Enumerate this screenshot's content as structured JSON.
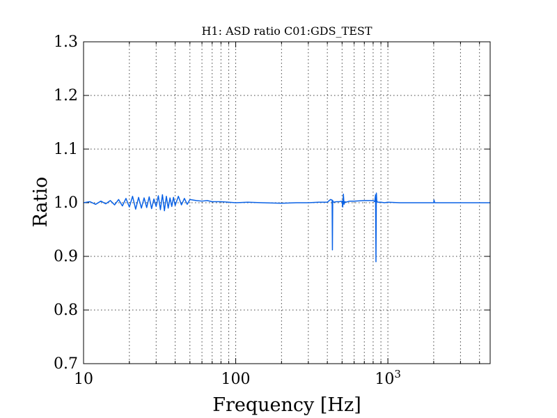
{
  "chart_data": {
    "type": "line",
    "title": "H1: ASD ratio C01:GDS_TEST",
    "xlabel": "Frequency [Hz]",
    "ylabel": "Ratio",
    "xscale": "log",
    "xlim": [
      10,
      4700
    ],
    "ylim": [
      0.7,
      1.3
    ],
    "grid": true,
    "x_tick_labels": [
      {
        "value": 10,
        "label": "10"
      },
      {
        "value": 100,
        "label": "100"
      },
      {
        "value": 1000,
        "label": "10",
        "sup": "3"
      }
    ],
    "y_tick_labels": [
      "0.7",
      "0.8",
      "0.9",
      "1.0",
      "1.1",
      "1.2",
      "1.3"
    ],
    "line_color": "#0a62e6",
    "series": [
      {
        "x": [
          10,
          11,
          12,
          13,
          14,
          15,
          16,
          17,
          18,
          19,
          20,
          21,
          22,
          23,
          24,
          25,
          26,
          27,
          28,
          29,
          30,
          31,
          32,
          33,
          34,
          35,
          36,
          37,
          38,
          39,
          40,
          42,
          44,
          46,
          48,
          50,
          55,
          60,
          65,
          70,
          80,
          90,
          100,
          120,
          150,
          200,
          250,
          300,
          350,
          400,
          420,
          430,
          432,
          434,
          436,
          440,
          460,
          480,
          500,
          505,
          510,
          515,
          520,
          530,
          560,
          600,
          700,
          800,
          820,
          830,
          835,
          840,
          845,
          850,
          860,
          900,
          950,
          1000,
          1200,
          1500,
          2000,
          2010,
          2030,
          2500,
          3000,
          4000,
          4700
        ],
        "y": [
          1.0,
          1.002,
          0.997,
          1.003,
          0.998,
          1.004,
          0.996,
          1.006,
          0.994,
          1.008,
          0.992,
          1.012,
          0.988,
          1.01,
          0.99,
          1.009,
          0.991,
          1.011,
          0.989,
          1.007,
          0.993,
          1.013,
          0.987,
          1.015,
          0.985,
          1.012,
          0.99,
          1.009,
          0.993,
          1.01,
          0.995,
          1.012,
          0.996,
          1.008,
          0.997,
          1.006,
          1.004,
          1.003,
          1.004,
          1.002,
          1.002,
          1.001,
          1.0,
          1.001,
          1.0,
          0.999,
          1.0,
          1.0,
          1.001,
          1.001,
          1.006,
          1.005,
          0.912,
          1.004,
          1.002,
          1.001,
          1.002,
          1.002,
          1.003,
          0.992,
          1.016,
          0.997,
          1.002,
          1.001,
          1.003,
          1.003,
          1.004,
          1.004,
          1.002,
          1.015,
          0.89,
          1.018,
          1.004,
          1.002,
          1.001,
          1.001,
          1.0,
          1.001,
          1.0,
          1.0,
          1.0,
          1.005,
          1.0,
          1.0,
          1.0,
          1.0,
          1.0
        ]
      }
    ]
  }
}
